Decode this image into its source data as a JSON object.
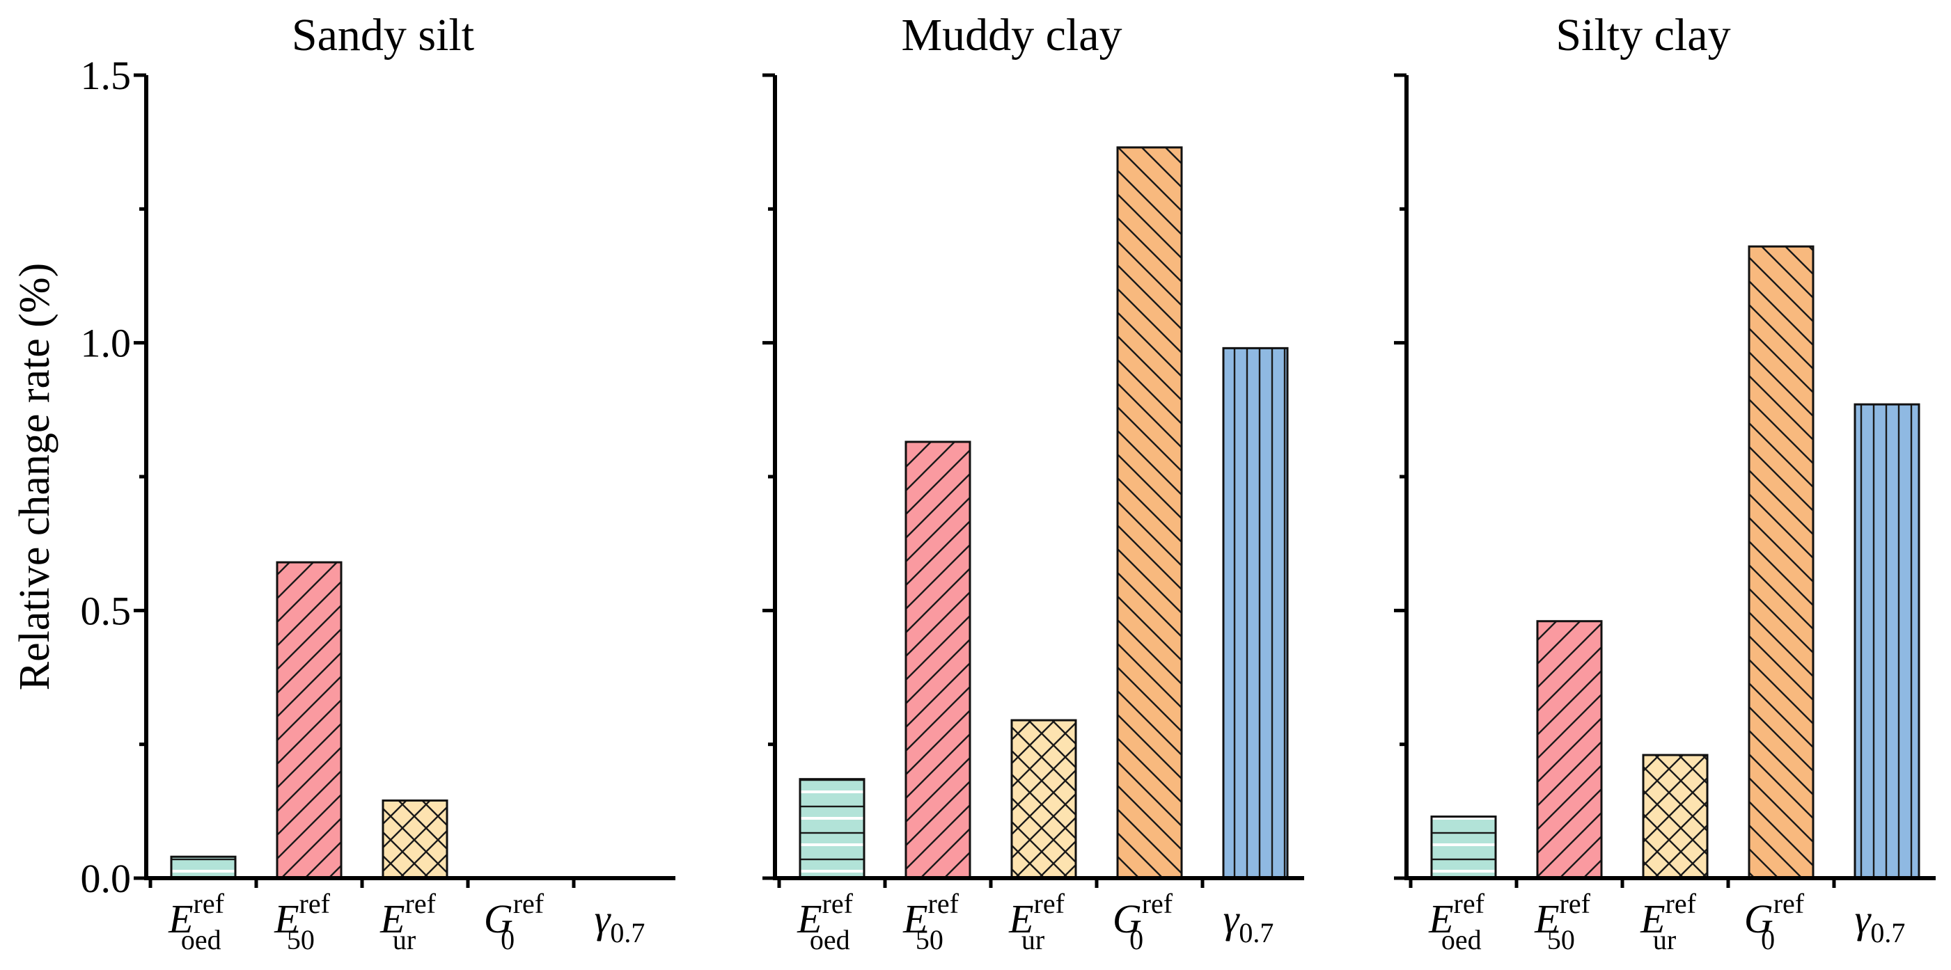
{
  "chart_data": {
    "type": "bar",
    "ylabel": "Relative change rate (%)",
    "ylim": [
      0,
      1.5
    ],
    "yticks": [
      0.0,
      0.5,
      1.0,
      1.5
    ],
    "ytick_labels": [
      "0.0",
      "0.5",
      "1.0",
      "1.5"
    ],
    "categories": [
      {
        "base": "E",
        "sup": "ref",
        "sub": "oed",
        "italic": true
      },
      {
        "base": "E",
        "sup": "ref",
        "sub": "50",
        "italic": true
      },
      {
        "base": "E",
        "sup": "ref",
        "sub": "ur",
        "italic": true
      },
      {
        "base": "G",
        "sup": "ref",
        "sub": "0",
        "italic": true
      },
      {
        "base": "γ",
        "sup": "",
        "sub": "0.7",
        "italic": true
      }
    ],
    "bar_styles": [
      {
        "color": "#b2e3d8",
        "pattern": "horizontal"
      },
      {
        "color": "#fa9aa0",
        "pattern": "forward-diagonal"
      },
      {
        "color": "#fde3b0",
        "pattern": "crosshatch"
      },
      {
        "color": "#f8b97e",
        "pattern": "back-diagonal"
      },
      {
        "color": "#8fb9e2",
        "pattern": "vertical"
      }
    ],
    "panels": [
      {
        "title": "Sandy silt",
        "values": [
          0.04,
          0.59,
          0.145,
          0.0,
          0.0
        ]
      },
      {
        "title": "Muddy clay",
        "values": [
          0.185,
          0.815,
          0.295,
          1.365,
          0.99
        ]
      },
      {
        "title": "Silty clay",
        "values": [
          0.115,
          0.48,
          0.23,
          1.18,
          0.885
        ]
      }
    ]
  }
}
